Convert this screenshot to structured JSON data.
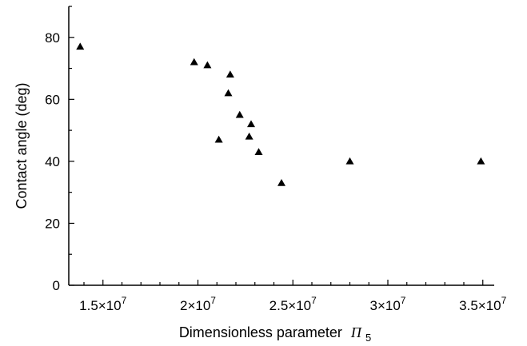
{
  "chart_data": {
    "type": "scatter",
    "title": "",
    "xlabel": "Dimensionless parameter",
    "xlabel_symbol": "Π",
    "xlabel_subscript": "5",
    "ylabel": "Contact angle (deg)",
    "xlim": [
      13200000,
      35600000
    ],
    "ylim": [
      0,
      90
    ],
    "grid": false,
    "legend": "none",
    "marker": "triangle",
    "marker_color": "#000000",
    "x_ticks": [
      {
        "value": 15000000,
        "mantissa": "1.5",
        "exp": "7"
      },
      {
        "value": 20000000,
        "mantissa": "2",
        "exp": "7"
      },
      {
        "value": 25000000,
        "mantissa": "2.5",
        "exp": "7"
      },
      {
        "value": 30000000,
        "mantissa": "3",
        "exp": "7"
      },
      {
        "value": 35000000,
        "mantissa": "3.5",
        "exp": "7"
      }
    ],
    "x_minor_step": 1000000,
    "y_ticks": [
      0,
      20,
      40,
      60,
      80
    ],
    "y_minor_step": 10,
    "points": [
      {
        "x": 13800000,
        "y": 77
      },
      {
        "x": 19800000,
        "y": 72
      },
      {
        "x": 20500000,
        "y": 71
      },
      {
        "x": 21100000,
        "y": 47
      },
      {
        "x": 21600000,
        "y": 62
      },
      {
        "x": 21700000,
        "y": 68
      },
      {
        "x": 22200000,
        "y": 55
      },
      {
        "x": 22700000,
        "y": 48
      },
      {
        "x": 22800000,
        "y": 52
      },
      {
        "x": 23200000,
        "y": 43
      },
      {
        "x": 24400000,
        "y": 33
      },
      {
        "x": 28000000,
        "y": 40
      },
      {
        "x": 34900000,
        "y": 40
      }
    ]
  }
}
